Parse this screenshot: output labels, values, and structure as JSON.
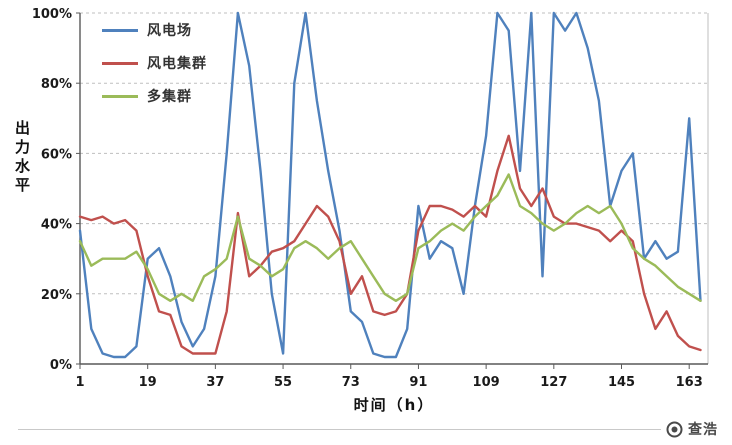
{
  "chart_data": {
    "type": "line",
    "title": "",
    "xlabel": "时间（h）",
    "ylabel": "出力水平",
    "xlim": [
      1,
      168
    ],
    "ylim": [
      0,
      100
    ],
    "x_ticks": [
      1,
      19,
      37,
      55,
      73,
      91,
      109,
      127,
      145,
      163
    ],
    "y_ticks": [
      "0%",
      "20%",
      "40%",
      "60%",
      "80%",
      "100%"
    ],
    "grid": "horizontal-dashed",
    "legend_position": "top-left-inside",
    "x": [
      1,
      4,
      7,
      10,
      13,
      16,
      19,
      22,
      25,
      28,
      31,
      34,
      37,
      40,
      43,
      46,
      49,
      52,
      55,
      58,
      61,
      64,
      67,
      70,
      73,
      76,
      79,
      82,
      85,
      88,
      91,
      94,
      97,
      100,
      103,
      106,
      109,
      112,
      115,
      118,
      121,
      124,
      127,
      130,
      133,
      136,
      139,
      142,
      145,
      148,
      151,
      154,
      157,
      160,
      163,
      166
    ],
    "series": [
      {
        "name": "风电场",
        "color": "#4F81BD",
        "values": [
          38,
          10,
          3,
          2,
          2,
          5,
          30,
          33,
          25,
          12,
          5,
          10,
          25,
          60,
          100,
          85,
          55,
          20,
          3,
          80,
          100,
          75,
          55,
          38,
          15,
          12,
          3,
          2,
          2,
          10,
          45,
          30,
          35,
          33,
          20,
          45,
          65,
          100,
          95,
          55,
          100,
          25,
          100,
          95,
          100,
          90,
          75,
          45,
          55,
          60,
          30,
          35,
          30,
          32,
          70,
          18
        ]
      },
      {
        "name": "风电集群",
        "color": "#C0504D",
        "values": [
          42,
          41,
          42,
          40,
          41,
          38,
          25,
          15,
          14,
          5,
          3,
          3,
          3,
          15,
          43,
          25,
          28,
          32,
          33,
          35,
          40,
          45,
          42,
          35,
          20,
          25,
          15,
          14,
          15,
          20,
          38,
          45,
          45,
          44,
          42,
          45,
          42,
          55,
          65,
          50,
          45,
          50,
          42,
          40,
          40,
          39,
          38,
          35,
          38,
          35,
          20,
          10,
          15,
          8,
          5,
          4
        ]
      },
      {
        "name": "多集群",
        "color": "#9BBB59",
        "values": [
          35,
          28,
          30,
          30,
          30,
          32,
          27,
          20,
          18,
          20,
          18,
          25,
          27,
          30,
          42,
          30,
          28,
          25,
          27,
          33,
          35,
          33,
          30,
          33,
          35,
          30,
          25,
          20,
          18,
          20,
          33,
          35,
          38,
          40,
          38,
          42,
          45,
          48,
          54,
          45,
          43,
          40,
          38,
          40,
          43,
          45,
          43,
          45,
          40,
          33,
          30,
          28,
          25,
          22,
          20,
          18
        ]
      }
    ]
  },
  "watermark": {
    "text": "查浩",
    "icon": "camera-logo-icon"
  }
}
